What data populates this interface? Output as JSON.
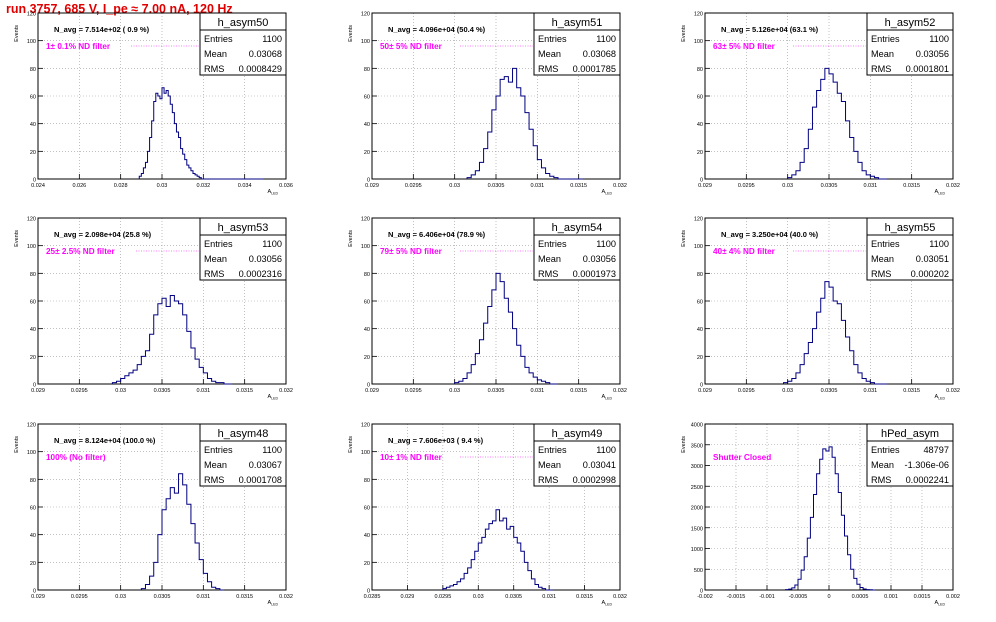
{
  "page_title": "run 3757,   685 V, I_pe ≈ 7.00 nA, 120 Hz",
  "colors": {
    "histogram": "#000080",
    "annotation": "#ff00ff",
    "grid": "#9a9a9a",
    "title": "#e00000"
  },
  "chart_data": [
    {
      "type": "histogram",
      "name": "h_asym50",
      "navg": "N_avg = 7.514e+02 ( 0.9 %)",
      "filter": "1± 0.1% ND filter",
      "stats": [
        [
          "Entries",
          "1100"
        ],
        [
          "Mean",
          "0.03068"
        ],
        [
          "RMS",
          "0.0008429"
        ]
      ],
      "ylabel": "Events",
      "xlabel": "A_LED",
      "xlim": [
        0.024,
        0.036
      ],
      "ylim": [
        0,
        120
      ],
      "xticks": [
        "0.024",
        "0.026",
        "0.028",
        "0.03",
        "0.032",
        "0.034",
        "0.036"
      ],
      "yticks": [
        0,
        20,
        40,
        60,
        80,
        100,
        120
      ],
      "bins": [
        0.0289,
        0.029,
        0.0291,
        0.0292,
        0.0293,
        0.0294,
        0.0295,
        0.0296,
        0.0297,
        0.0298,
        0.0299,
        0.03,
        0.0301,
        0.0302,
        0.0303,
        0.0304,
        0.0305,
        0.0306,
        0.0307,
        0.0308,
        0.0309,
        0.031,
        0.0311,
        0.0312,
        0.0313,
        0.0314,
        0.0315,
        0.0316,
        0.0317,
        0.0318,
        0.0319,
        0.032,
        0.0321,
        0.0322,
        0.0323,
        0.0324,
        0.0325,
        0.0326,
        0.0327,
        0.0328,
        0.0329,
        0.033,
        0.0331,
        0.0332,
        0.0333,
        0.0334,
        0.0335,
        0.0336,
        0.0337,
        0.0338,
        0.0339,
        0.034,
        0.0341,
        0.0342,
        0.0343,
        0.0344,
        0.0345,
        0.0346,
        0.0347,
        0.0348
      ],
      "counts": [
        2,
        4,
        8,
        12,
        20,
        30,
        42,
        56,
        62,
        60,
        58,
        66,
        62,
        64,
        60,
        54,
        48,
        40,
        34,
        30,
        22,
        18,
        14,
        10,
        8,
        6,
        4,
        3,
        2,
        1,
        0,
        0,
        0,
        0,
        0,
        0,
        0,
        0,
        0,
        0,
        0,
        0,
        0,
        0,
        0,
        0,
        0,
        0,
        0,
        0,
        0,
        0,
        0,
        0,
        0,
        0,
        0,
        0,
        0,
        0
      ]
    },
    {
      "type": "histogram",
      "name": "h_asym51",
      "navg": "N_avg = 4.096e+04 (50.4 %)",
      "filter": "50± 5% ND filter",
      "stats": [
        [
          "Entries",
          "1100"
        ],
        [
          "Mean",
          "0.03068"
        ],
        [
          "RMS",
          "0.0001785"
        ]
      ],
      "ylabel": "Events",
      "xlabel": "A_LED",
      "xlim": [
        0.029,
        0.032
      ],
      "ylim": [
        0,
        120
      ],
      "xticks": [
        "0.029",
        "0.0295",
        "0.03",
        "0.0305",
        "0.031",
        "0.0315",
        "0.032"
      ],
      "yticks": [
        0,
        20,
        40,
        60,
        80,
        100,
        120
      ],
      "bins": [
        0.03015,
        0.0302,
        0.03025,
        0.0303,
        0.03035,
        0.0304,
        0.03045,
        0.0305,
        0.03055,
        0.0306,
        0.03065,
        0.0307,
        0.03075,
        0.0308,
        0.03085,
        0.0309,
        0.03095,
        0.031,
        0.03105,
        0.0311,
        0.03115,
        0.0312,
        0.03125,
        0.0313,
        0.03135,
        0.0314,
        0.03145,
        0.0315
      ],
      "counts": [
        1,
        3,
        6,
        12,
        22,
        34,
        50,
        60,
        72,
        74,
        70,
        80,
        66,
        60,
        48,
        36,
        24,
        14,
        8,
        4,
        2,
        1,
        0,
        0,
        0,
        0,
        0,
        0
      ]
    },
    {
      "type": "histogram",
      "name": "h_asym52",
      "navg": "N_avg = 5.126e+04 (63.1 %)",
      "filter": "63± 5% ND filter",
      "stats": [
        [
          "Entries",
          "1100"
        ],
        [
          "Mean",
          "0.03056"
        ],
        [
          "RMS",
          "0.0001801"
        ]
      ],
      "ylabel": "Events",
      "xlabel": "A_LED",
      "xlim": [
        0.029,
        0.032
      ],
      "ylim": [
        0,
        120
      ],
      "xticks": [
        "0.029",
        "0.0295",
        "0.03",
        "0.0305",
        "0.031",
        "0.0315",
        "0.032"
      ],
      "yticks": [
        0,
        20,
        40,
        60,
        80,
        100,
        120
      ],
      "bins": [
        0.03,
        0.03005,
        0.0301,
        0.03015,
        0.0302,
        0.03025,
        0.0303,
        0.03035,
        0.0304,
        0.03045,
        0.0305,
        0.03055,
        0.0306,
        0.03065,
        0.0307,
        0.03075,
        0.0308,
        0.03085,
        0.0309,
        0.03095,
        0.031,
        0.03105,
        0.0311,
        0.03115
      ],
      "counts": [
        1,
        3,
        6,
        12,
        22,
        36,
        52,
        64,
        72,
        80,
        76,
        70,
        62,
        56,
        42,
        30,
        20,
        12,
        6,
        3,
        2,
        1,
        0,
        0
      ]
    },
    {
      "type": "histogram",
      "name": "h_asym53",
      "navg": "N_avg = 2.098e+04 (25.8 %)",
      "filter": "25± 2.5% ND filter",
      "stats": [
        [
          "Entries",
          "1100"
        ],
        [
          "Mean",
          "0.03056"
        ],
        [
          "RMS",
          "0.0002316"
        ]
      ],
      "ylabel": "Events",
      "xlabel": "A_LED",
      "xlim": [
        0.029,
        0.032
      ],
      "ylim": [
        0,
        120
      ],
      "xticks": [
        "0.029",
        "0.0295",
        "0.03",
        "0.0305",
        "0.031",
        "0.0315",
        "0.032"
      ],
      "yticks": [
        0,
        20,
        40,
        60,
        80,
        100,
        120
      ],
      "bins": [
        0.0299,
        0.02995,
        0.03,
        0.03005,
        0.0301,
        0.03015,
        0.0302,
        0.03025,
        0.0303,
        0.03035,
        0.0304,
        0.03045,
        0.0305,
        0.03055,
        0.0306,
        0.03065,
        0.0307,
        0.03075,
        0.0308,
        0.03085,
        0.0309,
        0.03095,
        0.031,
        0.03105,
        0.0311,
        0.03115,
        0.0312,
        0.03125,
        0.0313
      ],
      "counts": [
        1,
        2,
        4,
        6,
        8,
        10,
        14,
        20,
        24,
        36,
        50,
        58,
        62,
        56,
        64,
        60,
        58,
        50,
        38,
        26,
        18,
        12,
        8,
        4,
        2,
        1,
        1,
        0,
        0
      ]
    },
    {
      "type": "histogram",
      "name": "h_asym54",
      "navg": "N_avg = 6.406e+04 (78.9 %)",
      "filter": "79± 5% ND filter",
      "stats": [
        [
          "Entries",
          "1100"
        ],
        [
          "Mean",
          "0.03056"
        ],
        [
          "RMS",
          "0.0001973"
        ]
      ],
      "ylabel": "Events",
      "xlabel": "A_LED",
      "xlim": [
        0.029,
        0.032
      ],
      "ylim": [
        0,
        120
      ],
      "xticks": [
        "0.029",
        "0.0295",
        "0.03",
        "0.0305",
        "0.031",
        "0.0315",
        "0.032"
      ],
      "yticks": [
        0,
        20,
        40,
        60,
        80,
        100,
        120
      ],
      "bins": [
        0.03,
        0.03005,
        0.0301,
        0.03015,
        0.0302,
        0.03025,
        0.0303,
        0.03035,
        0.0304,
        0.03045,
        0.0305,
        0.03055,
        0.0306,
        0.03065,
        0.0307,
        0.03075,
        0.0308,
        0.03085,
        0.0309,
        0.03095,
        0.031,
        0.03105,
        0.0311,
        0.03115,
        0.0312
      ],
      "counts": [
        1,
        2,
        4,
        8,
        14,
        22,
        32,
        44,
        56,
        68,
        80,
        74,
        62,
        52,
        40,
        28,
        20,
        12,
        8,
        5,
        3,
        2,
        1,
        0,
        0
      ]
    },
    {
      "type": "histogram",
      "name": "h_asym55",
      "navg": "N_avg = 3.250e+04 (40.0 %)",
      "filter": "40± 4% ND filter",
      "stats": [
        [
          "Entries",
          "1100"
        ],
        [
          "Mean",
          "0.03051"
        ],
        [
          "RMS",
          "0.000202"
        ]
      ],
      "ylabel": "Events",
      "xlabel": "A_LED",
      "xlim": [
        0.029,
        0.032
      ],
      "ylim": [
        0,
        120
      ],
      "xticks": [
        "0.029",
        "0.0295",
        "0.03",
        "0.0305",
        "0.031",
        "0.0315",
        "0.032"
      ],
      "yticks": [
        0,
        20,
        40,
        60,
        80,
        100,
        120
      ],
      "bins": [
        0.02995,
        0.03,
        0.03005,
        0.0301,
        0.03015,
        0.0302,
        0.03025,
        0.0303,
        0.03035,
        0.0304,
        0.03045,
        0.0305,
        0.03055,
        0.0306,
        0.03065,
        0.0307,
        0.03075,
        0.0308,
        0.03085,
        0.0309,
        0.03095,
        0.031,
        0.03105,
        0.0311,
        0.03115
      ],
      "counts": [
        1,
        2,
        4,
        8,
        14,
        22,
        30,
        40,
        52,
        62,
        74,
        70,
        60,
        58,
        46,
        34,
        24,
        14,
        8,
        4,
        2,
        1,
        0,
        0,
        0
      ]
    },
    {
      "type": "histogram",
      "name": "h_asym48",
      "navg": "N_avg = 8.124e+04 (100.0 %)",
      "filter": "100% (No filter)",
      "stats": [
        [
          "Entries",
          "1100"
        ],
        [
          "Mean",
          "0.03067"
        ],
        [
          "RMS",
          "0.0001708"
        ]
      ],
      "ylabel": "Events",
      "xlabel": "A_LED",
      "xlim": [
        0.029,
        0.032
      ],
      "ylim": [
        0,
        120
      ],
      "xticks": [
        "0.029",
        "0.0295",
        "0.03",
        "0.0305",
        "0.031",
        "0.0315",
        "0.032"
      ],
      "yticks": [
        0,
        20,
        40,
        60,
        80,
        100,
        120
      ],
      "bins": [
        0.03025,
        0.0303,
        0.03035,
        0.0304,
        0.03045,
        0.0305,
        0.03055,
        0.0306,
        0.03065,
        0.0307,
        0.03075,
        0.0308,
        0.03085,
        0.0309,
        0.03095,
        0.031,
        0.03105,
        0.0311,
        0.03115,
        0.0312
      ],
      "counts": [
        1,
        4,
        10,
        20,
        40,
        58,
        66,
        74,
        70,
        84,
        76,
        62,
        48,
        34,
        22,
        12,
        6,
        2,
        1,
        0
      ]
    },
    {
      "type": "histogram",
      "name": "h_asym49",
      "navg": "N_avg = 7.606e+03 ( 9.4 %)",
      "filter": "10± 1% ND filter",
      "stats": [
        [
          "Entries",
          "1100"
        ],
        [
          "Mean",
          "0.03041"
        ],
        [
          "RMS",
          "0.0002998"
        ]
      ],
      "ylabel": "Events",
      "xlabel": "A_LED",
      "xlim": [
        0.0285,
        0.032
      ],
      "ylim": [
        0,
        120
      ],
      "xticks": [
        "0.0285",
        "0.029",
        "0.0295",
        "0.03",
        "0.0305",
        "0.031",
        "0.0315",
        "0.032"
      ],
      "yticks": [
        0,
        20,
        40,
        60,
        80,
        100,
        120
      ],
      "bins": [
        0.0295,
        0.02955,
        0.0296,
        0.02965,
        0.0297,
        0.02975,
        0.0298,
        0.02985,
        0.0299,
        0.02995,
        0.03,
        0.03005,
        0.0301,
        0.03015,
        0.0302,
        0.03025,
        0.0303,
        0.03035,
        0.0304,
        0.03045,
        0.0305,
        0.03055,
        0.0306,
        0.03065,
        0.0307,
        0.03075,
        0.0308,
        0.03085,
        0.0309,
        0.03095,
        0.031
      ],
      "counts": [
        1,
        2,
        3,
        4,
        6,
        8,
        12,
        16,
        22,
        28,
        34,
        38,
        44,
        48,
        50,
        58,
        50,
        52,
        44,
        46,
        38,
        34,
        28,
        20,
        14,
        8,
        4,
        2,
        1,
        0,
        0
      ]
    },
    {
      "type": "histogram",
      "name": "hPed_asym",
      "navg": "",
      "filter": "Shutter Closed",
      "stats": [
        [
          "Entries",
          "48797"
        ],
        [
          "Mean",
          "-1.306e-06"
        ],
        [
          "RMS",
          "0.0002241"
        ]
      ],
      "ylabel": "Events",
      "xlabel": "A_LED",
      "xlim": [
        -0.002,
        0.002
      ],
      "ylim": [
        0,
        4000
      ],
      "xticks": [
        "-0.002",
        "-0.0015",
        "-0.001",
        "-0.0005",
        "0",
        "0.0005",
        "0.001",
        "0.0015",
        "0.002"
      ],
      "yticks": [
        0,
        500,
        1000,
        1500,
        2000,
        2500,
        3000,
        3500,
        4000
      ],
      "bins": [
        -0.0007,
        -0.00065,
        -0.0006,
        -0.00055,
        -0.0005,
        -0.00045,
        -0.0004,
        -0.00035,
        -0.0003,
        -0.00025,
        -0.0002,
        -0.00015,
        -0.0001,
        -5e-05,
        0.0,
        5e-05,
        0.0001,
        0.00015,
        0.0002,
        0.00025,
        0.0003,
        0.00035,
        0.0004,
        0.00045,
        0.0005,
        0.00055,
        0.0006,
        0.00065,
        0.0007
      ],
      "counts": [
        10,
        20,
        50,
        120,
        260,
        480,
        800,
        1250,
        1750,
        2300,
        2800,
        3150,
        3400,
        3350,
        3450,
        3200,
        2800,
        2350,
        1800,
        1300,
        850,
        500,
        280,
        140,
        60,
        25,
        10,
        5,
        0
      ]
    }
  ]
}
